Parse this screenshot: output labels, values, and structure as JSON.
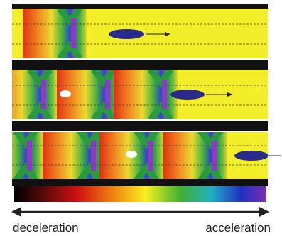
{
  "labels": {
    "left": "deceleration",
    "right": "acceleration"
  }
}
